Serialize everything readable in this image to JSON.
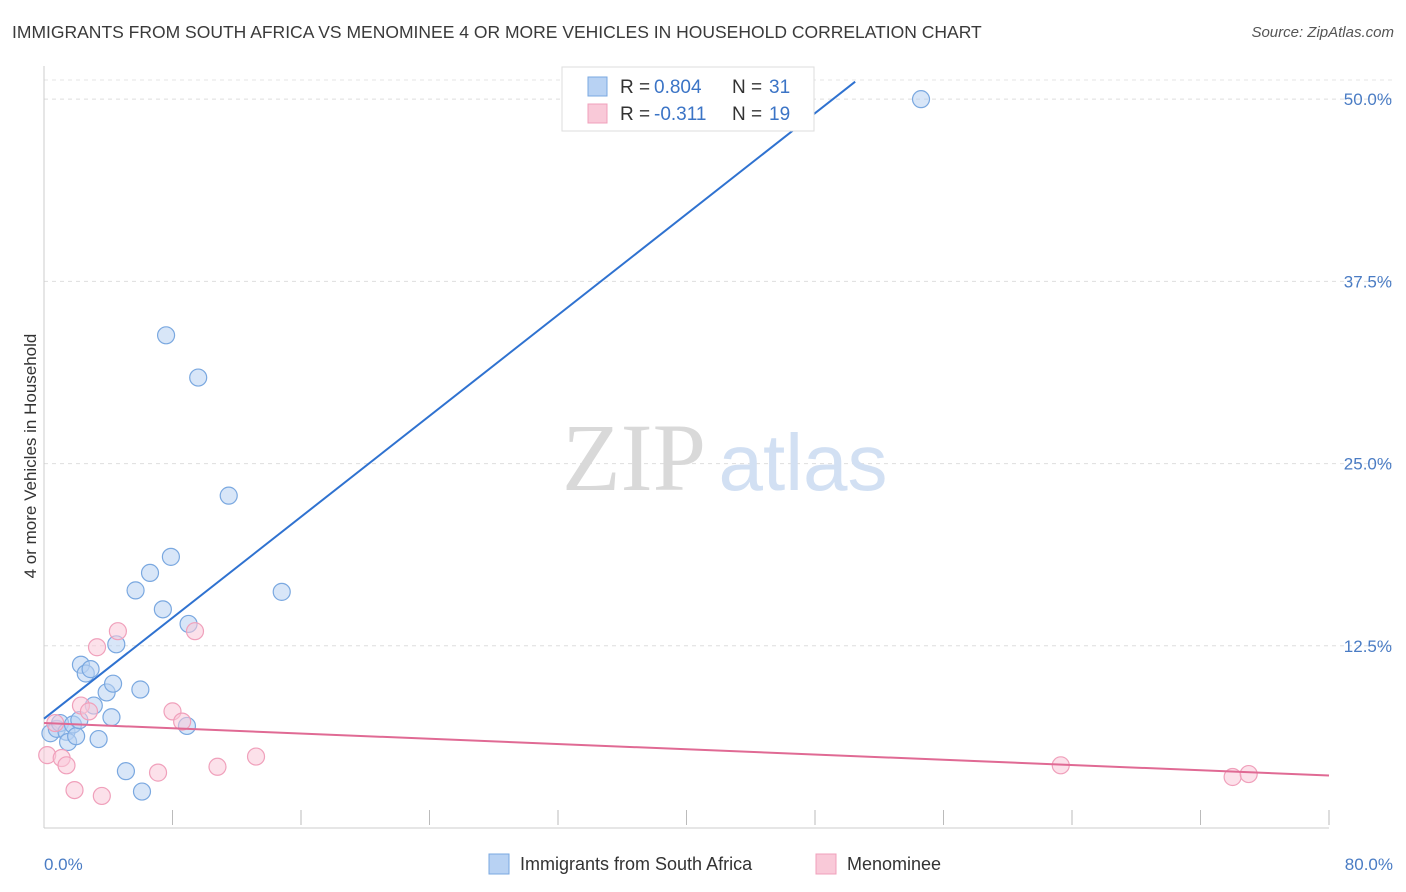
{
  "header": {
    "title": "IMMIGRANTS FROM SOUTH AFRICA VS MENOMINEE 4 OR MORE VEHICLES IN HOUSEHOLD CORRELATION CHART",
    "source": "Source: ZipAtlas.com"
  },
  "watermark": {
    "zip": "ZIP",
    "atlas": "atlas"
  },
  "chart_data": {
    "type": "scatter",
    "title": "IMMIGRANTS FROM SOUTH AFRICA VS MENOMINEE 4 OR MORE VEHICLES IN HOUSEHOLD CORRELATION CHART",
    "xlabel": "",
    "ylabel": "4 or more Vehicles in Household",
    "xlim": [
      0,
      80
    ],
    "ylim": [
      0,
      52
    ],
    "x_tick_labels": [
      {
        "value": 0,
        "label": "0.0%"
      },
      {
        "value": 80,
        "label": "80.0%"
      }
    ],
    "x_minor_ticks": [
      8,
      16,
      24,
      32,
      40,
      48,
      56,
      64,
      72,
      80
    ],
    "y_ticks": [
      {
        "value": 12.5,
        "label": "12.5%"
      },
      {
        "value": 25.0,
        "label": "25.0%"
      },
      {
        "value": 37.5,
        "label": "37.5%"
      },
      {
        "value": 50.0,
        "label": "50.0%"
      }
    ],
    "grid": true,
    "legend": {
      "position": "top-center",
      "entries": [
        {
          "r_label": "R = ",
          "r_value": "0.804",
          "n_label": "N = ",
          "n_value": "31"
        },
        {
          "r_label": "R = ",
          "r_value": "-0.311",
          "n_label": "N = ",
          "n_value": "19"
        }
      ]
    },
    "series": [
      {
        "name": "Immigrants from South Africa",
        "color": "#7aa8e0",
        "fill": "#b8d2f3",
        "line_color": "#2f72d0",
        "trend": {
          "x0": 0,
          "y0": 7.5,
          "x1": 50.5,
          "y1": 51.2
        },
        "points": [
          [
            0.4,
            6.5
          ],
          [
            0.8,
            6.8
          ],
          [
            1.0,
            7.2
          ],
          [
            1.4,
            6.6
          ],
          [
            1.8,
            7.1
          ],
          [
            1.5,
            5.9
          ],
          [
            2.0,
            6.3
          ],
          [
            2.2,
            7.4
          ],
          [
            2.3,
            11.2
          ],
          [
            2.6,
            10.6
          ],
          [
            2.9,
            10.9
          ],
          [
            3.1,
            8.4
          ],
          [
            3.4,
            6.1
          ],
          [
            3.9,
            9.3
          ],
          [
            4.2,
            7.6
          ],
          [
            4.3,
            9.9
          ],
          [
            4.5,
            12.6
          ],
          [
            5.1,
            3.9
          ],
          [
            5.7,
            16.3
          ],
          [
            6.1,
            2.5
          ],
          [
            6.0,
            9.5
          ],
          [
            6.6,
            17.5
          ],
          [
            7.4,
            15.0
          ],
          [
            7.6,
            33.8
          ],
          [
            7.9,
            18.6
          ],
          [
            9.0,
            14.0
          ],
          [
            9.6,
            30.9
          ],
          [
            8.9,
            7.0
          ],
          [
            11.5,
            22.8
          ],
          [
            14.8,
            16.2
          ],
          [
            54.6,
            50.0
          ]
        ]
      },
      {
        "name": "Menominee",
        "color": "#f0a0bb",
        "fill": "#f9c9d8",
        "line_color": "#e06a94",
        "trend": {
          "x0": 0,
          "y0": 7.2,
          "x1": 80,
          "y1": 3.6
        },
        "points": [
          [
            0.2,
            5.0
          ],
          [
            0.7,
            7.2
          ],
          [
            1.1,
            4.8
          ],
          [
            1.4,
            4.3
          ],
          [
            1.9,
            2.6
          ],
          [
            2.3,
            8.4
          ],
          [
            2.8,
            8.0
          ],
          [
            3.3,
            12.4
          ],
          [
            3.6,
            2.2
          ],
          [
            4.6,
            13.5
          ],
          [
            7.1,
            3.8
          ],
          [
            8.0,
            8.0
          ],
          [
            8.6,
            7.3
          ],
          [
            9.4,
            13.5
          ],
          [
            10.8,
            4.2
          ],
          [
            13.2,
            4.9
          ],
          [
            63.3,
            4.3
          ],
          [
            74.0,
            3.5
          ],
          [
            75.0,
            3.7
          ]
        ]
      }
    ]
  }
}
